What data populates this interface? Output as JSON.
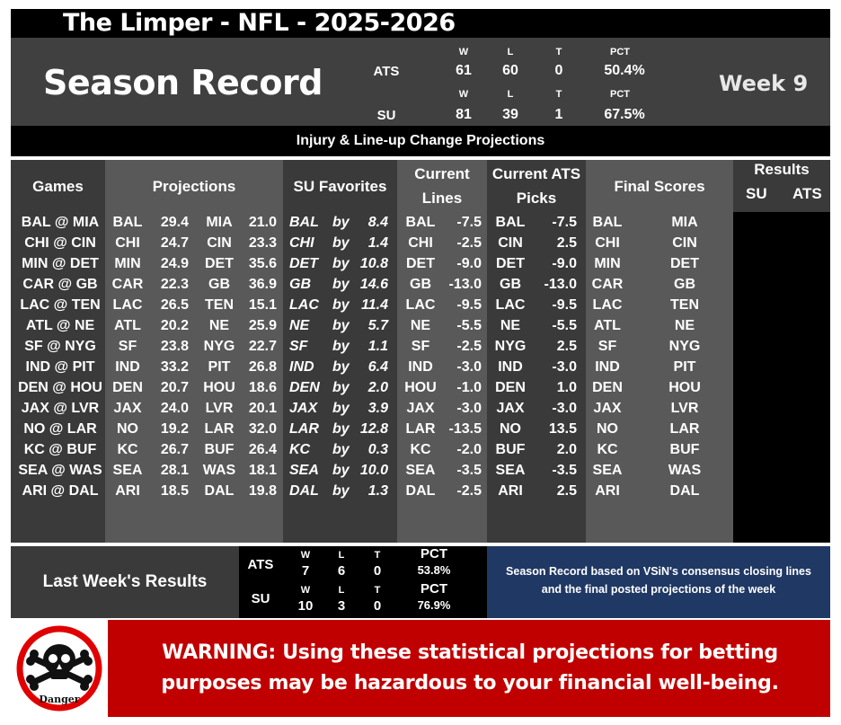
{
  "title": "The Limper - NFL - 2025-2026",
  "season_title": "Season Record",
  "week": "Week 9",
  "season_record": {
    "ats": {
      "label": "ATS",
      "w_head": "W",
      "l_head": "L",
      "t_head": "T",
      "pct_head": "PCT",
      "w": "61",
      "l": "60",
      "t": "0",
      "pct": "50.4%"
    },
    "su": {
      "label": "SU",
      "w_head": "W",
      "l_head": "L",
      "t_head": "T",
      "pct_head": "PCT",
      "w": "81",
      "l": "39",
      "t": "1",
      "pct": "67.5%"
    }
  },
  "subtitle": "Injury & Line-up Change Projections",
  "headers": {
    "games": "Games",
    "projections": "Projections",
    "su_favorites": "SU Favorites",
    "current_lines_1": "Current",
    "current_lines_2": "Lines",
    "current_ats_1": "Current ATS",
    "current_ats_2": "Picks",
    "final_scores": "Final Scores",
    "results": "Results",
    "results_su": "SU",
    "results_ats": "ATS"
  },
  "games": [
    {
      "game": "BAL @ MIA",
      "t1": "BAL",
      "s1": "29.4",
      "t2": "MIA",
      "s2": "21.0",
      "fav": "BAL",
      "by": "by",
      "margin": "8.4",
      "line_team": "BAL",
      "line": "-7.5",
      "pick_team": "BAL",
      "pick_line": "-7.5",
      "final_t1": "BAL",
      "final_t2": "MIA"
    },
    {
      "game": "CHI @ CIN",
      "t1": "CHI",
      "s1": "24.7",
      "t2": "CIN",
      "s2": "23.3",
      "fav": "CHI",
      "by": "by",
      "margin": "1.4",
      "line_team": "CHI",
      "line": "-2.5",
      "pick_team": "CIN",
      "pick_line": "2.5",
      "final_t1": "CHI",
      "final_t2": "CIN"
    },
    {
      "game": "MIN @ DET",
      "t1": "MIN",
      "s1": "24.9",
      "t2": "DET",
      "s2": "35.6",
      "fav": "DET",
      "by": "by",
      "margin": "10.8",
      "line_team": "DET",
      "line": "-9.0",
      "pick_team": "DET",
      "pick_line": "-9.0",
      "final_t1": "MIN",
      "final_t2": "DET"
    },
    {
      "game": "CAR @ GB",
      "t1": "CAR",
      "s1": "22.3",
      "t2": "GB",
      "s2": "36.9",
      "fav": "GB",
      "by": "by",
      "margin": "14.6",
      "line_team": "GB",
      "line": "-13.0",
      "pick_team": "GB",
      "pick_line": "-13.0",
      "final_t1": "CAR",
      "final_t2": "GB"
    },
    {
      "game": "LAC @ TEN",
      "t1": "LAC",
      "s1": "26.5",
      "t2": "TEN",
      "s2": "15.1",
      "fav": "LAC",
      "by": "by",
      "margin": "11.4",
      "line_team": "LAC",
      "line": "-9.5",
      "pick_team": "LAC",
      "pick_line": "-9.5",
      "final_t1": "LAC",
      "final_t2": "TEN"
    },
    {
      "game": "ATL @ NE",
      "t1": "ATL",
      "s1": "20.2",
      "t2": "NE",
      "s2": "25.9",
      "fav": "NE",
      "by": "by",
      "margin": "5.7",
      "line_team": "NE",
      "line": "-5.5",
      "pick_team": "NE",
      "pick_line": "-5.5",
      "final_t1": "ATL",
      "final_t2": "NE"
    },
    {
      "game": "SF @ NYG",
      "t1": "SF",
      "s1": "23.8",
      "t2": "NYG",
      "s2": "22.7",
      "fav": "SF",
      "by": "by",
      "margin": "1.1",
      "line_team": "SF",
      "line": "-2.5",
      "pick_team": "NYG",
      "pick_line": "2.5",
      "final_t1": "SF",
      "final_t2": "NYG"
    },
    {
      "game": "IND @ PIT",
      "t1": "IND",
      "s1": "33.2",
      "t2": "PIT",
      "s2": "26.8",
      "fav": "IND",
      "by": "by",
      "margin": "6.4",
      "line_team": "IND",
      "line": "-3.0",
      "pick_team": "IND",
      "pick_line": "-3.0",
      "final_t1": "IND",
      "final_t2": "PIT"
    },
    {
      "game": "DEN @ HOU",
      "t1": "DEN",
      "s1": "20.7",
      "t2": "HOU",
      "s2": "18.6",
      "fav": "DEN",
      "by": "by",
      "margin": "2.0",
      "line_team": "HOU",
      "line": "-1.0",
      "pick_team": "DEN",
      "pick_line": "1.0",
      "final_t1": "DEN",
      "final_t2": "HOU"
    },
    {
      "game": "JAX @ LVR",
      "t1": "JAX",
      "s1": "24.0",
      "t2": "LVR",
      "s2": "20.1",
      "fav": "JAX",
      "by": "by",
      "margin": "3.9",
      "line_team": "JAX",
      "line": "-3.0",
      "pick_team": "JAX",
      "pick_line": "-3.0",
      "final_t1": "JAX",
      "final_t2": "LVR"
    },
    {
      "game": "NO @ LAR",
      "t1": "NO",
      "s1": "19.2",
      "t2": "LAR",
      "s2": "32.0",
      "fav": "LAR",
      "by": "by",
      "margin": "12.8",
      "line_team": "LAR",
      "line": "-13.5",
      "pick_team": "NO",
      "pick_line": "13.5",
      "final_t1": "NO",
      "final_t2": "LAR"
    },
    {
      "game": "KC @ BUF",
      "t1": "KC",
      "s1": "26.7",
      "t2": "BUF",
      "s2": "26.4",
      "fav": "KC",
      "by": "by",
      "margin": "0.3",
      "line_team": "KC",
      "line": "-2.0",
      "pick_team": "BUF",
      "pick_line": "2.0",
      "final_t1": "KC",
      "final_t2": "BUF"
    },
    {
      "game": "SEA @ WAS",
      "t1": "SEA",
      "s1": "28.1",
      "t2": "WAS",
      "s2": "18.1",
      "fav": "SEA",
      "by": "by",
      "margin": "10.0",
      "line_team": "SEA",
      "line": "-3.5",
      "pick_team": "SEA",
      "pick_line": "-3.5",
      "final_t1": "SEA",
      "final_t2": "WAS"
    },
    {
      "game": "ARI @ DAL",
      "t1": "ARI",
      "s1": "18.5",
      "t2": "DAL",
      "s2": "19.8",
      "fav": "DAL",
      "by": "by",
      "margin": "1.3",
      "line_team": "DAL",
      "line": "-2.5",
      "pick_team": "ARI",
      "pick_line": "2.5",
      "final_t1": "ARI",
      "final_t2": "DAL"
    }
  ],
  "last_week": {
    "title": "Last Week's Results",
    "ats": {
      "label": "ATS",
      "w_head": "W",
      "l_head": "L",
      "t_head": "T",
      "pct_head": "PCT",
      "w": "7",
      "l": "6",
      "t": "0",
      "pct": "53.8%"
    },
    "su": {
      "label": "SU",
      "w_head": "W",
      "l_head": "L",
      "t_head": "T",
      "pct_head": "PCT",
      "w": "10",
      "l": "3",
      "t": "0",
      "pct": "76.9%"
    },
    "note": "Season Record based on VSiN's consensus closing lines and the final posted projections of the week"
  },
  "warning": {
    "text": "WARNING: Using these statistical projections for betting purposes may be hazardous to your financial well-being.",
    "icon_label": "Danger",
    "icon": "skull-crossbones-icon"
  },
  "colors": {
    "dark_gray": "#3a3a3a",
    "light_gray": "#595959",
    "navy": "#1f3864",
    "red": "#c00000",
    "black": "#000000"
  }
}
